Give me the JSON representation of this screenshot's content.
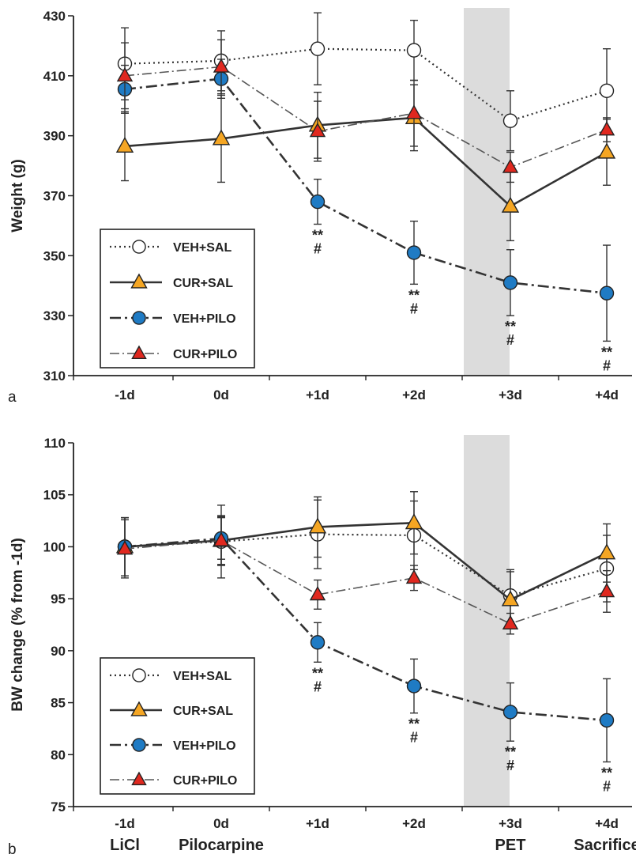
{
  "colors": {
    "shade": "#dcdcdc",
    "open_marker": "#ffffff",
    "orange": "#f5a623",
    "blue": "#1f7bc4",
    "red": "#e0281f",
    "ink": "#222222"
  },
  "chart_data": [
    {
      "type": "line",
      "panel_label": "a",
      "ylabel": "Weight (g)",
      "xlabel": "",
      "categories": [
        "-1d",
        "0d",
        "+1d",
        "+2d",
        "+3d",
        "+4d"
      ],
      "ylim": [
        310,
        430
      ],
      "yticks": [
        310,
        330,
        350,
        370,
        390,
        410,
        430
      ],
      "shaded_category": "+3d",
      "legend_position": "bottom-left",
      "series": [
        {
          "name": "VEH+SAL",
          "values": [
            414,
            415,
            419,
            418.5,
            395,
            405
          ],
          "errors": [
            12,
            10,
            12,
            10,
            10,
            14
          ]
        },
        {
          "name": "CUR+SAL",
          "values": [
            386.5,
            389,
            393.5,
            396,
            366.5,
            384.5
          ],
          "errors": [
            11.5,
            14.5,
            11,
            11,
            11.5,
            11
          ]
        },
        {
          "name": "VEH+PILO",
          "values": [
            405.5,
            409,
            368,
            351,
            341,
            337.5
          ],
          "errors": [
            8,
            6.5,
            7.5,
            10.5,
            11,
            16
          ]
        },
        {
          "name": "CUR+PILO",
          "values": [
            410,
            413,
            391.5,
            397.5,
            379.5,
            392
          ],
          "errors": [
            11,
            9,
            10,
            11,
            5,
            4
          ]
        }
      ],
      "annotations": [
        {
          "category": "+1d",
          "lines": [
            "**",
            "#"
          ]
        },
        {
          "category": "+2d",
          "lines": [
            "**",
            "#"
          ]
        },
        {
          "category": "+3d",
          "lines": [
            "**",
            "#"
          ]
        },
        {
          "category": "+4d",
          "lines": [
            "**",
            "#"
          ]
        }
      ]
    },
    {
      "type": "line",
      "panel_label": "b",
      "ylabel": "BW change (% from -1d)",
      "xlabel": "",
      "categories": [
        "-1d",
        "0d",
        "+1d",
        "+2d",
        "+3d",
        "+4d"
      ],
      "category_sublabels": [
        "LiCl",
        "Pilocarpine",
        "",
        "",
        "PET",
        "Sacrifice"
      ],
      "ylim": [
        75,
        110
      ],
      "yticks": [
        75,
        80,
        85,
        90,
        95,
        100,
        105,
        110
      ],
      "shaded_category": "+3d",
      "legend_position": "bottom-left",
      "series": [
        {
          "name": "VEH+SAL",
          "values": [
            100,
            100.5,
            101.2,
            101.1,
            95.3,
            97.9
          ],
          "errors": [
            2.8,
            3.5,
            3.3,
            3.3,
            2.5,
            3.2
          ]
        },
        {
          "name": "CUR+SAL",
          "values": [
            100,
            100.6,
            101.9,
            102.3,
            94.9,
            99.4
          ],
          "errors": [
            2.8,
            2.3,
            2.9,
            3.0,
            2.7,
            2.8
          ]
        },
        {
          "name": "VEH+PILO",
          "values": [
            100,
            100.8,
            90.8,
            86.6,
            84.1,
            83.3
          ],
          "errors": [
            2.8,
            2.0,
            1.9,
            2.6,
            2.8,
            4.0
          ]
        },
        {
          "name": "CUR+PILO",
          "values": [
            99.8,
            100.6,
            95.4,
            97.0,
            92.6,
            95.7
          ],
          "errors": [
            2.8,
            2.4,
            1.4,
            1.2,
            1.0,
            2.0
          ]
        }
      ],
      "annotations": [
        {
          "category": "+1d",
          "lines": [
            "**",
            "#"
          ]
        },
        {
          "category": "+2d",
          "lines": [
            "**",
            "#"
          ]
        },
        {
          "category": "+3d",
          "lines": [
            "**",
            "#"
          ]
        },
        {
          "category": "+4d",
          "lines": [
            "**",
            "#"
          ]
        }
      ]
    }
  ]
}
